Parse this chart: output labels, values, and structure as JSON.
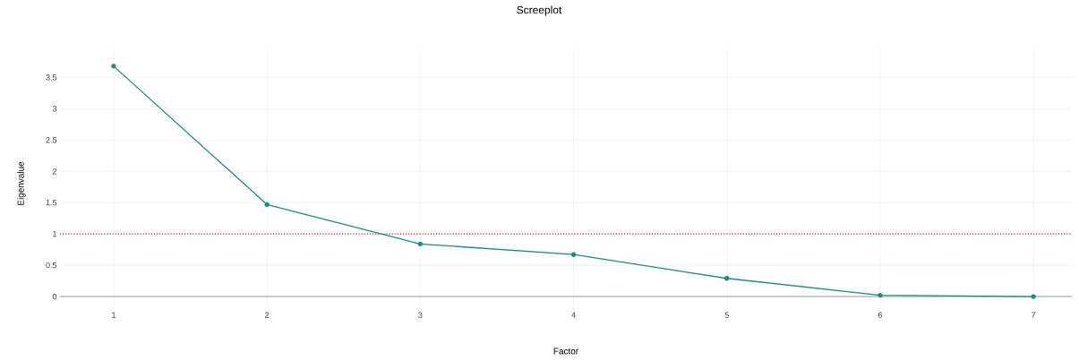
{
  "chart_data": {
    "type": "line",
    "title": "Screeplot",
    "xlabel": "Factor",
    "ylabel": "Eigenvalue",
    "x": [
      1,
      2,
      3,
      4,
      5,
      6,
      7
    ],
    "series": [
      {
        "color": "#1f8a82",
        "values": [
          3.68,
          1.47,
          0.84,
          0.67,
          0.29,
          0.02,
          0.0
        ]
      }
    ],
    "xlim": [
      0.65,
      7.25
    ],
    "ylim": [
      -0.2,
      3.95
    ],
    "xticks": [
      1,
      2,
      3,
      4,
      5,
      6,
      7
    ],
    "yticks": [
      0,
      0.5,
      1,
      1.5,
      2,
      2.5,
      3,
      3.5
    ],
    "ref_lines": [
      {
        "axis": "y",
        "value": 1,
        "color": "#b22222",
        "line_style": "dotted"
      }
    ],
    "grid": true,
    "marker": "circle",
    "line_style": "solid"
  }
}
